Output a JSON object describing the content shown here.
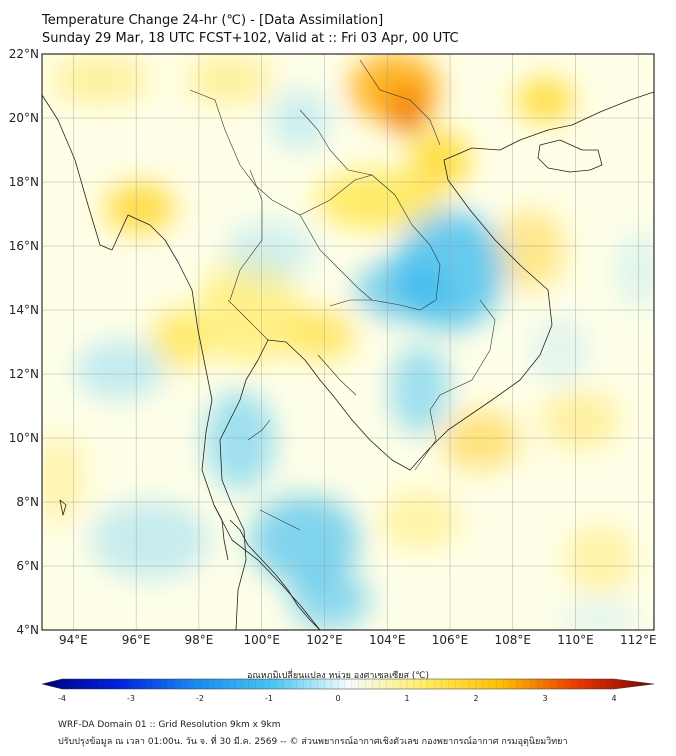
{
  "header": {
    "title": "Temperature Change 24-hr (℃) - [Data Assimilation]",
    "subtitle": "Sunday 29 Mar, 18 UTC FCST+102, Valid at :: Fri 03 Apr, 00 UTC"
  },
  "map": {
    "lon_range": [
      93,
      112.5
    ],
    "lat_range": [
      4,
      22
    ],
    "lon_ticks": [
      "94°E",
      "96°E",
      "98°E",
      "100°E",
      "102°E",
      "104°E",
      "106°E",
      "108°E",
      "110°E",
      "112°E"
    ],
    "lat_ticks": [
      "22°N",
      "20°N",
      "18°N",
      "16°N",
      "14°N",
      "12°N",
      "10°N",
      "8°N",
      "6°N",
      "4°N"
    ],
    "grid": true
  },
  "colorbar": {
    "label": "อุณหภูมิเปลี่ยนแปลง หน่วย องศาเซลเซียส (℃)",
    "ticks": [
      "-4",
      "-3",
      "-2",
      "-1",
      "0",
      "1",
      "2",
      "3",
      "4"
    ],
    "range": [
      -4,
      4
    ]
  },
  "footer": {
    "line1": "WRF-DA Domain 01 :: Grid Resolution 9km x 9km",
    "line2": "ปรับปรุงข้อมูล ณ เวลา 01:00น. วัน จ. ที่ 30 มี.ค. 2569 -- © ส่วนพยากรณ์อากาศเชิงตัวเลข กองพยากรณ์อากาศ กรมอุตุนิยมวิทยา"
  }
}
